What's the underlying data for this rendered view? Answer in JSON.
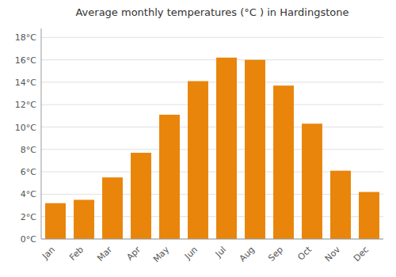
{
  "chart_data": {
    "type": "bar",
    "title": "Average monthly temperatures (°C ) in Hardingstone",
    "categories": [
      "Jan",
      "Feb",
      "Mar",
      "Apr",
      "May",
      "Jun",
      "Jul",
      "Aug",
      "Sep",
      "Oct",
      "Nov",
      "Dec"
    ],
    "values": [
      3.2,
      3.5,
      5.5,
      7.7,
      11.1,
      14.1,
      16.2,
      16.0,
      13.7,
      10.3,
      6.1,
      4.2
    ],
    "color": "#E8850A",
    "ylim": [
      0,
      18.8
    ],
    "yticks": [
      {
        "value": 0,
        "label": "0°C"
      },
      {
        "value": 2,
        "label": "2°C"
      },
      {
        "value": 4,
        "label": "4°C"
      },
      {
        "value": 6,
        "label": "6°C"
      },
      {
        "value": 8,
        "label": "8°C"
      },
      {
        "value": 10,
        "label": "10°C"
      },
      {
        "value": 12,
        "label": "12°C"
      },
      {
        "value": 14,
        "label": "14°C"
      },
      {
        "value": 16,
        "label": "16°C"
      },
      {
        "value": 18,
        "label": "18°C"
      }
    ],
    "grid": true
  }
}
